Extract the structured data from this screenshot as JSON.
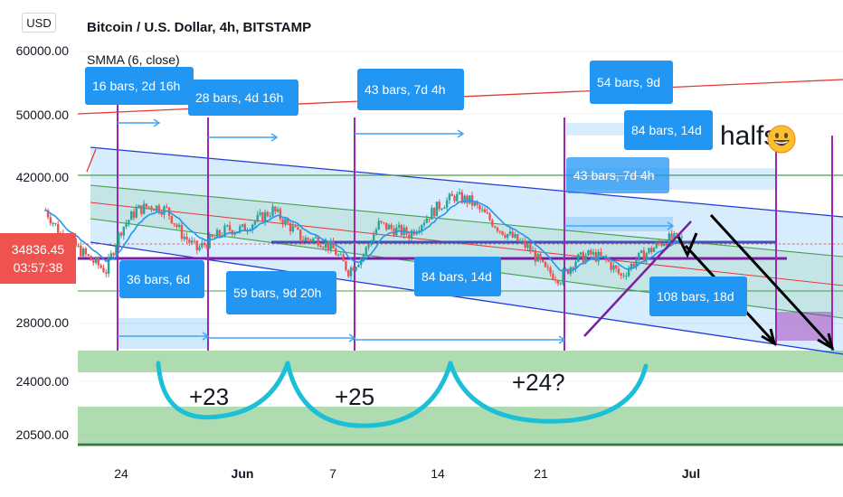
{
  "header": {
    "currency_button": "USD",
    "title": "Bitcoin / U.S. Dollar, 4h, BITSTAMP",
    "indicator": "SMMA (6, close)"
  },
  "price_tag": {
    "price": "34836.45",
    "countdown": "03:57:38"
  },
  "y_axis": {
    "ticks": [
      "60000.00",
      "50000.00",
      "42000.00",
      "28000.00",
      "24000.00",
      "20500.00"
    ]
  },
  "x_axis": {
    "ticks": [
      "24",
      "Jun",
      "7",
      "14",
      "21",
      "Jul"
    ]
  },
  "bar_labels": {
    "top": [
      "16 bars, 2d 16h",
      "28 bars, 4d 16h",
      "43 bars, 7d 4h",
      "54 bars, 9d",
      "84 bars, 14d",
      "43 bars, 7d 4h"
    ],
    "bottom": [
      "36 bars, 6d",
      "59 bars, 9d 20h",
      "84 bars, 14d",
      "108 bars, 18d"
    ]
  },
  "notes": {
    "cycle_1": "+23",
    "cycle_2": "+25",
    "cycle_3": "+24?",
    "halfs": "halfs"
  },
  "colors": {
    "channel_fill": "#2196f3",
    "channel_line": "#1e3bd6",
    "inner_channel": "#4caf50",
    "support_zone": "#4caf50",
    "trend_red": "#e53935",
    "marker_purple": "#9c27b0",
    "cycle_curve": "#1bc0d6",
    "candle_up": "#26a69a",
    "candle_down": "#ef5350",
    "smma": "#2196f3",
    "price_tag": "#ef5350"
  },
  "chart_data": {
    "type": "candlestick",
    "symbol": "Bitcoin / U.S. Dollar",
    "interval": "4h",
    "exchange": "BITSTAMP",
    "y_scale": "log",
    "ylim": [
      19500,
      64000
    ],
    "last_price": 34836.45,
    "close_path": [
      [
        "May 19",
        38500
      ],
      [
        "May 20",
        36000
      ],
      [
        "May 22",
        33500
      ],
      [
        "May 23",
        32500
      ],
      [
        "May 24",
        36500
      ],
      [
        "May 25",
        38500
      ],
      [
        "May 26",
        39000
      ],
      [
        "May 27",
        38500
      ],
      [
        "May 28",
        36000
      ],
      [
        "May 29",
        34500
      ],
      [
        "May 30",
        35500
      ],
      [
        "May 31",
        36500
      ],
      [
        "Jun 1",
        36500
      ],
      [
        "Jun 3",
        38500
      ],
      [
        "Jun 4",
        37000
      ],
      [
        "Jun 5",
        35500
      ],
      [
        "Jun 6",
        35500
      ],
      [
        "Jun 7",
        34500
      ],
      [
        "Jun 8",
        32500
      ],
      [
        "Jun 9",
        34000
      ],
      [
        "Jun 10",
        37000
      ],
      [
        "Jun 12",
        36000
      ],
      [
        "Jun 14",
        39000
      ],
      [
        "Jun 15",
        40000
      ],
      [
        "Jun 16",
        39500
      ],
      [
        "Jun 17",
        38000
      ],
      [
        "Jun 18",
        36500
      ],
      [
        "Jun 19",
        35500
      ],
      [
        "Jun 20",
        34500
      ],
      [
        "Jun 21",
        32500
      ],
      [
        "Jun 22",
        31800
      ],
      [
        "Jun 23",
        33500
      ],
      [
        "Jun 24",
        34000
      ],
      [
        "Jun 25",
        33500
      ],
      [
        "Jun 26",
        32000
      ],
      [
        "Jun 27",
        33500
      ],
      [
        "Jun 28",
        34500
      ],
      [
        "Jun 29",
        35500
      ],
      [
        "Jun 30",
        35500
      ]
    ]
  }
}
